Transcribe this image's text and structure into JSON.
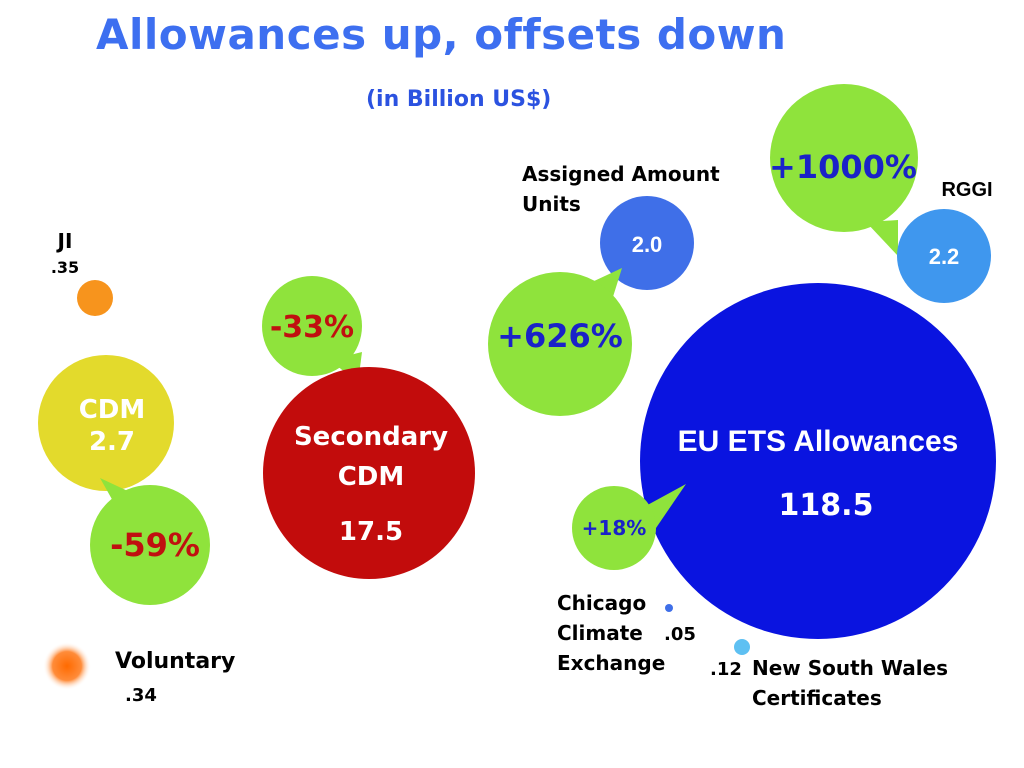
{
  "chart_data": {
    "type": "bubble",
    "title": "Allowances up, offsets down",
    "subtitle": "(in Billion US$)",
    "units": "Billion US$",
    "bubbles": [
      {
        "key": "ji",
        "label": "JI",
        "value": 0.35,
        "value_text": ".35",
        "color": "#f7941d"
      },
      {
        "key": "cdm",
        "label": "CDM",
        "value": 2.7,
        "value_text": "2.7",
        "color": "#e3da2c",
        "change": "-59%"
      },
      {
        "key": "voluntary",
        "label": "Voluntary",
        "value": 0.34,
        "value_text": ".34",
        "color": "#ff7a1f"
      },
      {
        "key": "secondary_cdm",
        "label": "Secondary CDM",
        "value": 17.5,
        "value_text": "17.5",
        "color": "#c20c0c",
        "change": "-33%"
      },
      {
        "key": "aau",
        "label": "Assigned Amount Units",
        "value": 2.0,
        "value_text": "2.0",
        "color": "#3f6fe8",
        "change": "+626%"
      },
      {
        "key": "rggi",
        "label": "RGGI",
        "value": 2.2,
        "value_text": "2.2",
        "color": "#3f97ee",
        "change": "+1000%"
      },
      {
        "key": "eu_ets",
        "label": "EU ETS Allowances",
        "value": 118.5,
        "value_text": "118.5",
        "color": "#0a14e0",
        "change": "+18%"
      },
      {
        "key": "ccx",
        "label": "Chicago Climate Exchange",
        "value": 0.05,
        "value_text": ".05",
        "color": "#3f6fe8"
      },
      {
        "key": "nsw",
        "label": "New South Wales Certificates",
        "value": 0.12,
        "value_text": ".12",
        "color": "#5ec0f2"
      }
    ]
  },
  "labels": {
    "ji_name": "JI",
    "ji_value": ".35",
    "cdm_name": "CDM",
    "cdm_value": "2.7",
    "cdm_change": "-59%",
    "voluntary_name": "Voluntary",
    "voluntary_value": ".34",
    "secondary_line1": "Secondary",
    "secondary_line2": "CDM",
    "secondary_value": "17.5",
    "secondary_change": "-33%",
    "aau_line1": "Assigned Amount",
    "aau_line2": "Units",
    "aau_value": "2.0",
    "aau_change": "+626%",
    "rggi_name": "RGGI",
    "rggi_value": "2.2",
    "rggi_change": "+1000%",
    "eu_name": "EU ETS Allowances",
    "eu_value": "118.5",
    "eu_change": "+18%",
    "ccx_line1": "Chicago",
    "ccx_line2": "Climate",
    "ccx_line3": "Exchange",
    "ccx_value": ".05",
    "nsw_value": ".12",
    "nsw_line1": "New South Wales",
    "nsw_line2": "Certificates"
  },
  "colors": {
    "callout_green": "#8fe33c",
    "change_red": "#c01010",
    "change_blue": "#1a22c8",
    "title_blue": "#3d6ff0"
  }
}
